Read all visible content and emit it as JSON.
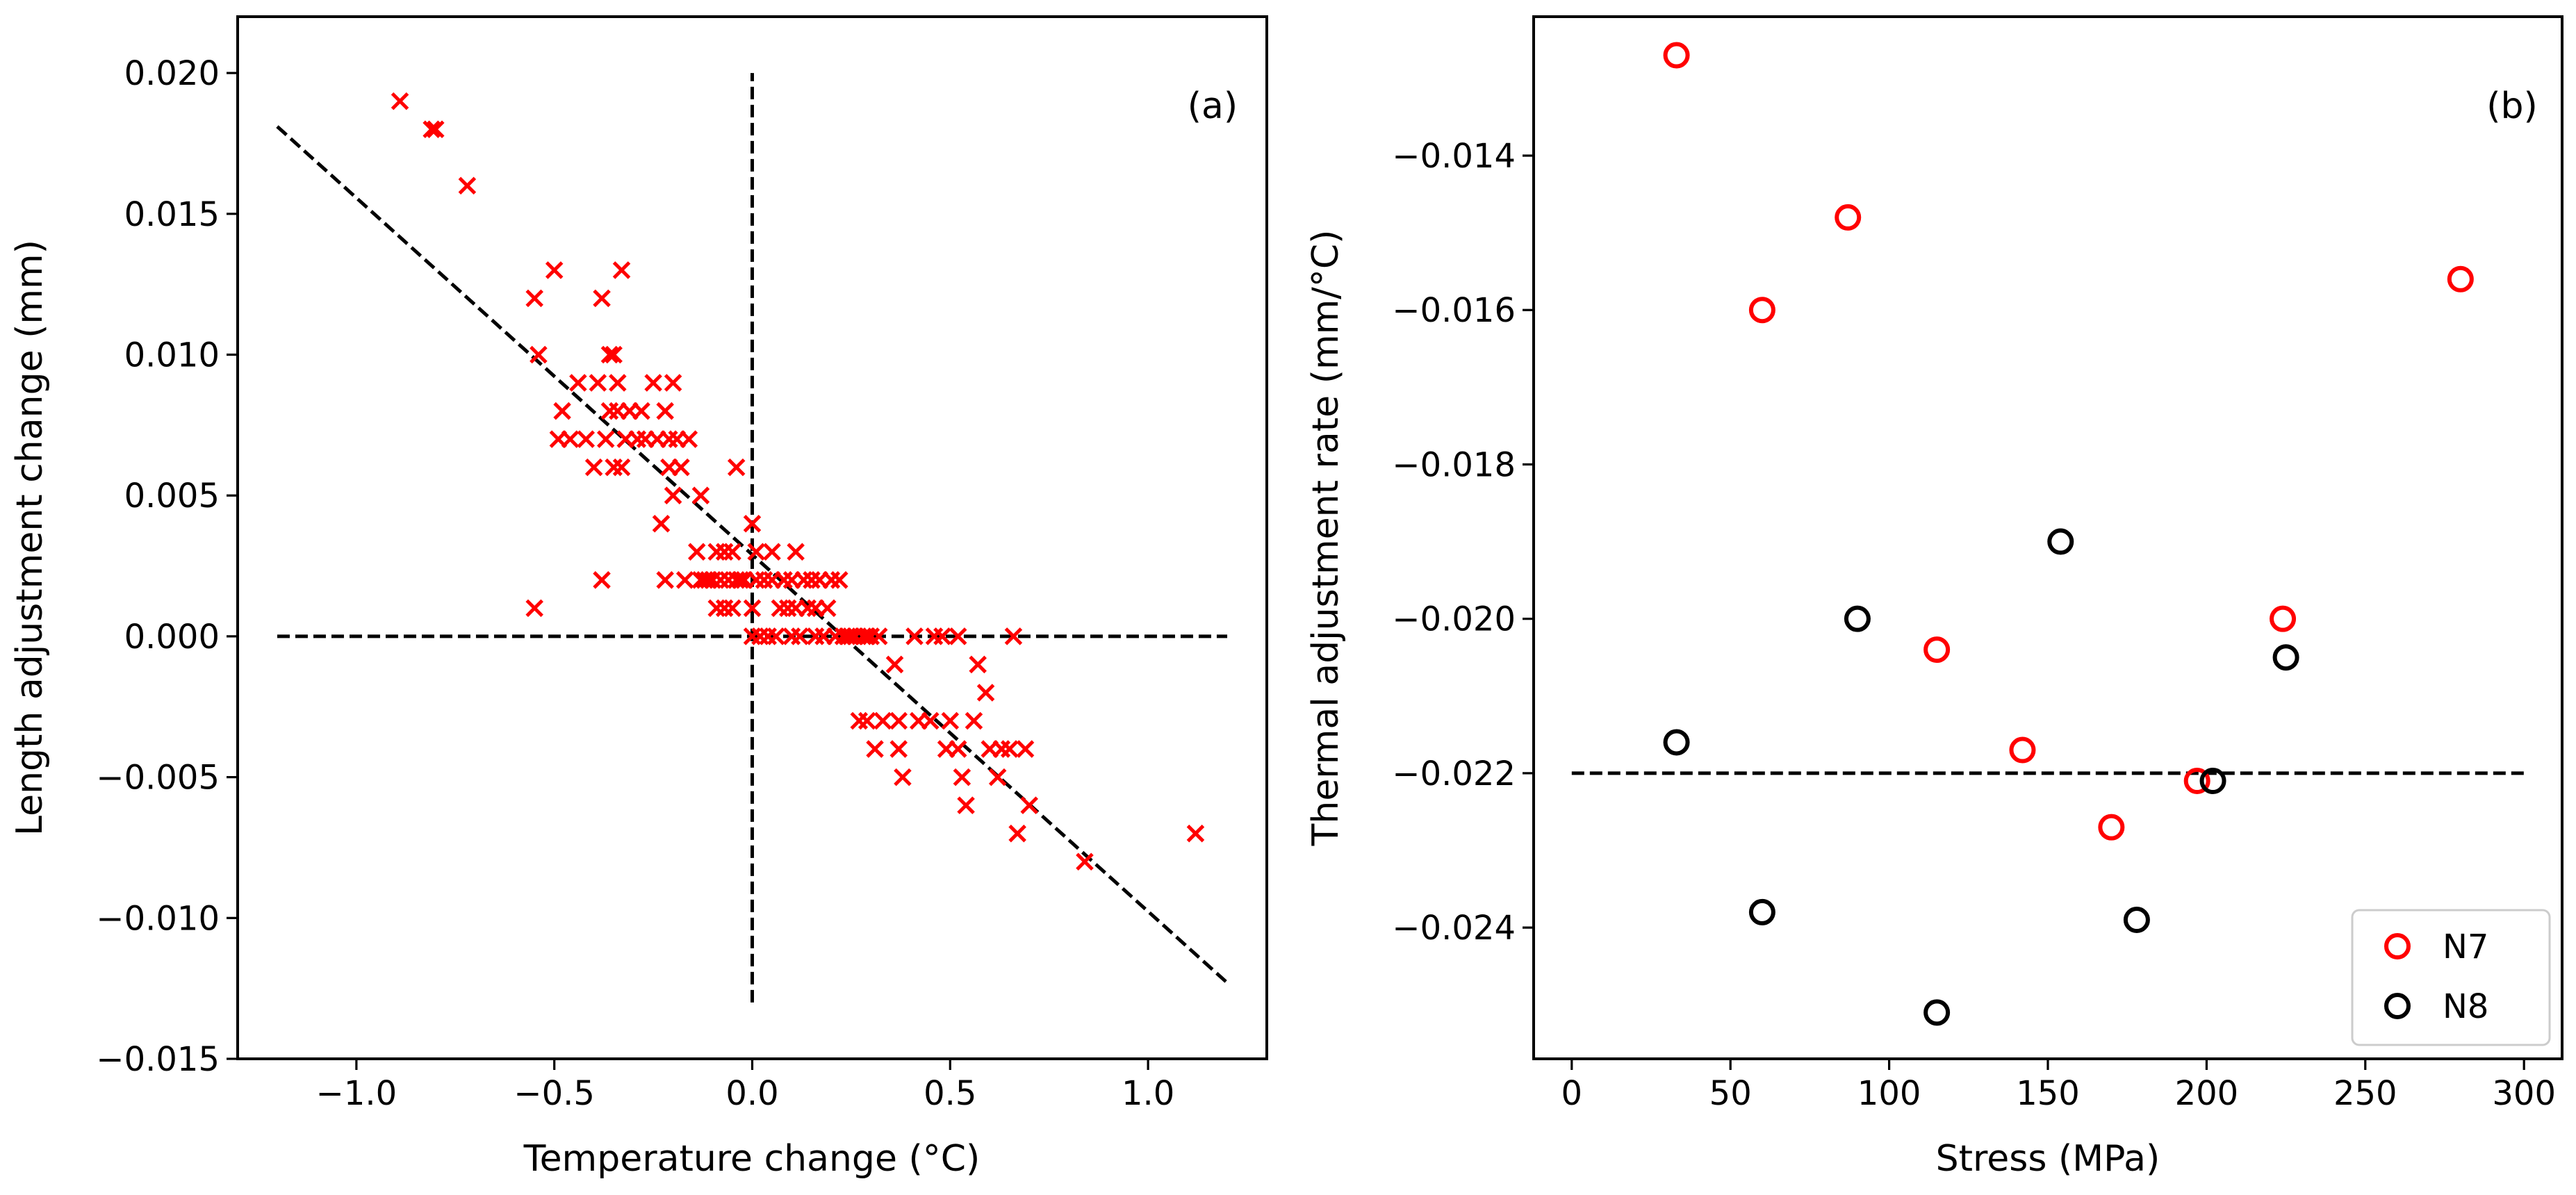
{
  "chart_data": [
    {
      "type": "scatter",
      "panel_label": "(a)",
      "xlabel": "Temperature change (°C)",
      "ylabel": "Length adjustment change (mm)",
      "xlim": [
        -1.3,
        1.3
      ],
      "ylim": [
        -0.015,
        0.022
      ],
      "xticks": [
        -1.0,
        -0.5,
        0.0,
        0.5,
        1.0
      ],
      "xtick_labels": [
        "−1.0",
        "−0.5",
        "0.0",
        "0.5",
        "1.0"
      ],
      "yticks": [
        -0.015,
        -0.01,
        -0.005,
        0.0,
        0.005,
        0.01,
        0.015,
        0.02
      ],
      "ytick_labels": [
        "−0.015",
        "−0.010",
        "−0.005",
        "0.000",
        "0.005",
        "0.010",
        "0.015",
        "0.020"
      ],
      "marker": "x",
      "marker_color": "#ff0000",
      "points": [
        [
          -0.89,
          0.019
        ],
        [
          -0.81,
          0.018
        ],
        [
          -0.8,
          0.018
        ],
        [
          -0.72,
          0.016
        ],
        [
          -0.55,
          0.012
        ],
        [
          -0.54,
          0.01
        ],
        [
          -0.55,
          0.001
        ],
        [
          -0.5,
          0.013
        ],
        [
          -0.49,
          0.007
        ],
        [
          -0.48,
          0.008
        ],
        [
          -0.46,
          0.007
        ],
        [
          -0.44,
          0.009
        ],
        [
          -0.42,
          0.007
        ],
        [
          -0.4,
          0.006
        ],
        [
          -0.39,
          0.009
        ],
        [
          -0.38,
          0.012
        ],
        [
          -0.38,
          0.002
        ],
        [
          -0.37,
          0.007
        ],
        [
          -0.36,
          0.008
        ],
        [
          -0.36,
          0.01
        ],
        [
          -0.35,
          0.01
        ],
        [
          -0.35,
          0.006
        ],
        [
          -0.34,
          0.009
        ],
        [
          -0.34,
          0.008
        ],
        [
          -0.33,
          0.013
        ],
        [
          -0.33,
          0.006
        ],
        [
          -0.32,
          0.007
        ],
        [
          -0.31,
          0.008
        ],
        [
          -0.29,
          0.007
        ],
        [
          -0.28,
          0.008
        ],
        [
          -0.27,
          0.007
        ],
        [
          -0.25,
          0.009
        ],
        [
          -0.24,
          0.007
        ],
        [
          -0.23,
          0.004
        ],
        [
          -0.22,
          0.002
        ],
        [
          -0.22,
          0.008
        ],
        [
          -0.21,
          0.006
        ],
        [
          -0.21,
          0.007
        ],
        [
          -0.2,
          0.009
        ],
        [
          -0.2,
          0.005
        ],
        [
          -0.19,
          0.007
        ],
        [
          -0.18,
          0.006
        ],
        [
          -0.17,
          0.002
        ],
        [
          -0.16,
          0.007
        ],
        [
          -0.14,
          0.003
        ],
        [
          -0.13,
          0.005
        ],
        [
          -0.13,
          0.002
        ],
        [
          -0.12,
          0.002
        ],
        [
          -0.11,
          0.002
        ],
        [
          -0.1,
          0.002
        ],
        [
          -0.09,
          0.003
        ],
        [
          -0.09,
          0.001
        ],
        [
          -0.08,
          0.002
        ],
        [
          -0.07,
          0.003
        ],
        [
          -0.07,
          0.001
        ],
        [
          -0.06,
          0.002
        ],
        [
          -0.05,
          0.003
        ],
        [
          -0.05,
          0.001
        ],
        [
          -0.04,
          0.002
        ],
        [
          -0.04,
          0.006
        ],
        [
          -0.03,
          0.002
        ],
        [
          -0.02,
          0.002
        ],
        [
          0.0,
          0.004
        ],
        [
          0.0,
          0.001
        ],
        [
          0.0,
          0.0
        ],
        [
          0.01,
          0.003
        ],
        [
          0.01,
          0.002
        ],
        [
          0.02,
          0.0
        ],
        [
          0.03,
          0.002
        ],
        [
          0.04,
          0.0
        ],
        [
          0.05,
          0.003
        ],
        [
          0.05,
          0.002
        ],
        [
          0.06,
          0.0
        ],
        [
          0.07,
          0.001
        ],
        [
          0.08,
          0.002
        ],
        [
          0.09,
          0.001
        ],
        [
          0.1,
          0.0
        ],
        [
          0.1,
          0.002
        ],
        [
          0.11,
          0.001
        ],
        [
          0.11,
          0.003
        ],
        [
          0.12,
          0.0
        ],
        [
          0.13,
          0.002
        ],
        [
          0.14,
          0.001
        ],
        [
          0.15,
          0.002
        ],
        [
          0.16,
          0.0
        ],
        [
          0.16,
          0.001
        ],
        [
          0.17,
          0.002
        ],
        [
          0.18,
          0.0
        ],
        [
          0.19,
          0.001
        ],
        [
          0.2,
          0.002
        ],
        [
          0.21,
          0.0
        ],
        [
          0.22,
          0.002
        ],
        [
          0.23,
          0.0
        ],
        [
          0.24,
          0.0
        ],
        [
          0.25,
          0.0
        ],
        [
          0.26,
          0.0
        ],
        [
          0.27,
          -0.003
        ],
        [
          0.28,
          0.0
        ],
        [
          0.29,
          -0.003
        ],
        [
          0.29,
          0.0
        ],
        [
          0.3,
          0.0
        ],
        [
          0.31,
          -0.004
        ],
        [
          0.32,
          0.0
        ],
        [
          0.33,
          -0.003
        ],
        [
          0.36,
          -0.001
        ],
        [
          0.37,
          -0.003
        ],
        [
          0.37,
          -0.004
        ],
        [
          0.38,
          -0.005
        ],
        [
          0.41,
          0.0
        ],
        [
          0.42,
          -0.003
        ],
        [
          0.45,
          -0.003
        ],
        [
          0.46,
          0.0
        ],
        [
          0.48,
          0.0
        ],
        [
          0.49,
          -0.004
        ],
        [
          0.5,
          -0.003
        ],
        [
          0.52,
          -0.004
        ],
        [
          0.52,
          0.0
        ],
        [
          0.53,
          -0.005
        ],
        [
          0.54,
          -0.006
        ],
        [
          0.56,
          -0.003
        ],
        [
          0.57,
          -0.001
        ],
        [
          0.59,
          -0.002
        ],
        [
          0.6,
          -0.004
        ],
        [
          0.62,
          -0.005
        ],
        [
          0.63,
          -0.004
        ],
        [
          0.65,
          -0.004
        ],
        [
          0.66,
          0.0
        ],
        [
          0.67,
          -0.007
        ],
        [
          0.69,
          -0.004
        ],
        [
          0.7,
          -0.006
        ],
        [
          0.84,
          -0.008
        ],
        [
          1.12,
          -0.007
        ]
      ],
      "reference_lines": [
        {
          "from": [
            -1.2,
            0.0181
          ],
          "to": [
            1.2,
            -0.0123
          ],
          "style": "dashed",
          "description": "fitted trend"
        },
        {
          "from": [
            -1.2,
            0.0
          ],
          "to": [
            1.2,
            0.0
          ],
          "style": "dashed"
        },
        {
          "from": [
            0.0,
            -0.013
          ],
          "to": [
            0.0,
            0.02
          ],
          "style": "dashed"
        }
      ]
    },
    {
      "type": "scatter",
      "panel_label": "(b)",
      "xlabel": "Stress (MPa)",
      "ylabel": "Thermal adjustment rate (mm/°C)",
      "xlim": [
        -12,
        312
      ],
      "ylim": [
        -0.0257,
        -0.0122
      ],
      "xticks": [
        0,
        50,
        100,
        150,
        200,
        250,
        300
      ],
      "xtick_labels": [
        "0",
        "50",
        "100",
        "150",
        "200",
        "250",
        "300"
      ],
      "yticks": [
        -0.024,
        -0.022,
        -0.02,
        -0.018,
        -0.016,
        -0.014
      ],
      "ytick_labels": [
        "−0.024",
        "−0.022",
        "−0.020",
        "−0.018",
        "−0.016",
        "−0.014"
      ],
      "series": [
        {
          "name": "N7",
          "color": "#ff0000",
          "marker": "o-open",
          "points": [
            [
              33,
              -0.0127
            ],
            [
              60,
              -0.016
            ],
            [
              87,
              -0.0148
            ],
            [
              115,
              -0.0204
            ],
            [
              142,
              -0.0217
            ],
            [
              170,
              -0.0227
            ],
            [
              197,
              -0.0221
            ],
            [
              224,
              -0.02
            ],
            [
              280,
              -0.0156
            ]
          ]
        },
        {
          "name": "N8",
          "color": "#000000",
          "marker": "o-open",
          "points": [
            [
              33,
              -0.0216
            ],
            [
              60,
              -0.0238
            ],
            [
              90,
              -0.02
            ],
            [
              115,
              -0.0251
            ],
            [
              154,
              -0.019
            ],
            [
              178,
              -0.0239
            ],
            [
              202,
              -0.0221
            ],
            [
              225,
              -0.0205
            ]
          ]
        }
      ],
      "reference_lines": [
        {
          "from": [
            0,
            -0.022
          ],
          "to": [
            300,
            -0.022
          ],
          "style": "dashed"
        }
      ],
      "legend": {
        "placement": "lower right",
        "entries": [
          "N7",
          "N8"
        ]
      }
    }
  ]
}
